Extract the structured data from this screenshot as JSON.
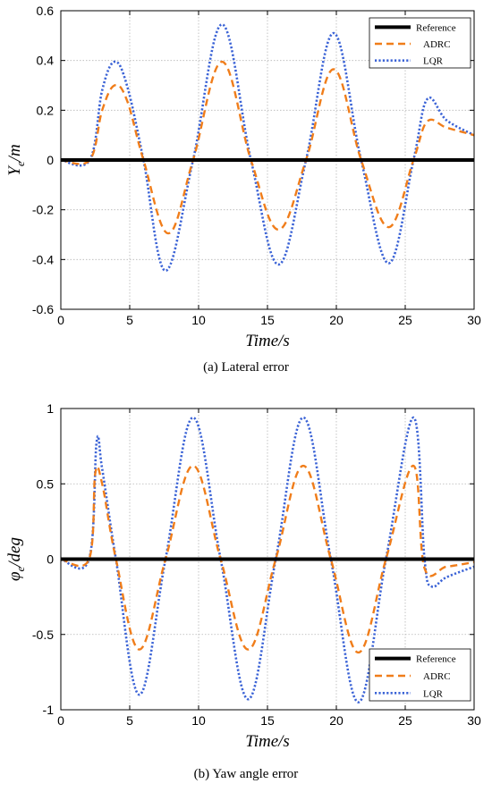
{
  "chart_data": [
    {
      "type": "line",
      "caption": "(a) Lateral error",
      "xlabel": "Time/s",
      "ylabel_main": "Y",
      "ylabel_sub": "e",
      "ylabel_suffix": "/m",
      "xlim": [
        0,
        30
      ],
      "ylim": [
        -0.6,
        0.6
      ],
      "xticks": [
        0,
        5,
        10,
        15,
        20,
        25,
        30
      ],
      "yticks": [
        -0.6,
        -0.4,
        -0.2,
        0,
        0.2,
        0.4,
        0.6
      ],
      "ytick_labels": [
        "-0.6",
        "-0.4",
        "-0.2",
        "0",
        "0.2",
        "0.4",
        "0.6"
      ],
      "grid": true,
      "legend_position": "top-right",
      "series": [
        {
          "name": "Reference",
          "style": "solid",
          "color": "#000000",
          "x": [
            0,
            30
          ],
          "y": [
            0,
            0
          ]
        },
        {
          "name": "ADRC",
          "style": "dashed",
          "color": "#f07d1a",
          "x": [
            0,
            2.1,
            3,
            3.9,
            4.8,
            6.0,
            7.8,
            9.6,
            11.7,
            13.8,
            15.8,
            17.8,
            19.8,
            21.8,
            23.8,
            25.6,
            26.6,
            28,
            30
          ],
          "y": [
            0,
            0,
            0.2,
            0.3,
            0.24,
            0,
            -0.295,
            0,
            0.395,
            0,
            -0.28,
            0,
            0.365,
            0,
            -0.27,
            0,
            0.155,
            0.13,
            0.1
          ]
        },
        {
          "name": "LQR",
          "style": "dotted",
          "color": "#3b63d6",
          "x": [
            0,
            2.1,
            3,
            3.9,
            4.8,
            6.0,
            7.6,
            9.6,
            11.7,
            13.8,
            15.8,
            17.8,
            19.8,
            21.8,
            23.8,
            25.6,
            26.6,
            28,
            30
          ],
          "y": [
            0,
            0,
            0.28,
            0.395,
            0.3,
            0,
            -0.445,
            0,
            0.545,
            0,
            -0.42,
            0,
            0.51,
            0,
            -0.415,
            0,
            0.245,
            0.16,
            0.1
          ]
        }
      ]
    },
    {
      "type": "line",
      "caption": "(b) Yaw angle error",
      "xlabel": "Time/s",
      "ylabel_main": "φ",
      "ylabel_sub": "e",
      "ylabel_suffix": "/deg",
      "xlim": [
        0,
        30
      ],
      "ylim": [
        -1,
        1
      ],
      "xticks": [
        0,
        5,
        10,
        15,
        20,
        25,
        30
      ],
      "yticks": [
        -1,
        -0.5,
        0,
        0.5,
        1
      ],
      "ytick_labels": [
        "-1",
        "-0.5",
        "0",
        "0.5",
        "1"
      ],
      "grid": true,
      "legend_position": "bottom-right",
      "series": [
        {
          "name": "Reference",
          "style": "solid",
          "color": "#000000",
          "x": [
            0,
            30
          ],
          "y": [
            0,
            0
          ]
        },
        {
          "name": "ADRC",
          "style": "dashed",
          "color": "#f07d1a",
          "x": [
            0,
            2.05,
            2.5,
            3.0,
            4.0,
            5.7,
            7.6,
            9.6,
            11.6,
            13.6,
            15.6,
            17.6,
            19.6,
            21.6,
            23.6,
            25.6,
            26.4,
            28,
            30
          ],
          "y": [
            0,
            0,
            0.57,
            0.5,
            0,
            -0.6,
            0,
            0.62,
            0,
            -0.6,
            0,
            0.62,
            0,
            -0.62,
            0,
            0.62,
            -0.06,
            -0.05,
            -0.02
          ]
        },
        {
          "name": "LQR",
          "style": "dotted",
          "color": "#3b63d6",
          "x": [
            0,
            2.05,
            2.6,
            3.0,
            4.0,
            5.7,
            7.6,
            9.6,
            11.6,
            13.6,
            15.6,
            17.6,
            19.6,
            21.6,
            23.6,
            25.6,
            26.4,
            26.9,
            28,
            30
          ],
          "y": [
            0,
            0,
            0.78,
            0.6,
            0,
            -0.9,
            0,
            0.94,
            0,
            -0.93,
            0,
            0.94,
            0,
            -0.95,
            0,
            0.94,
            0,
            -0.18,
            -0.12,
            -0.05
          ]
        }
      ]
    }
  ]
}
